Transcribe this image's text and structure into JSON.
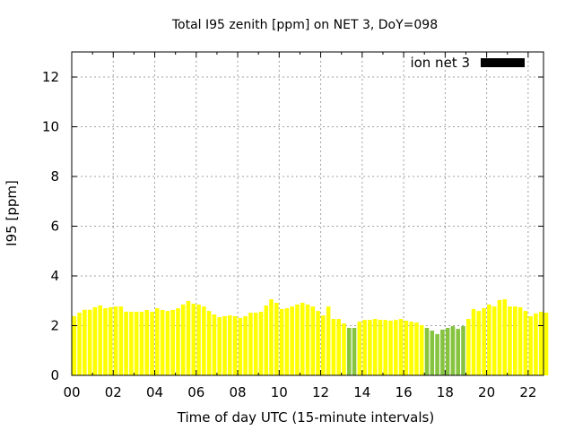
{
  "chart_data": {
    "type": "bar",
    "title": "Total I95 zenith [ppm] on NET 3, DoY=098",
    "xlabel": "Time of day UTC (15-minute intervals)",
    "ylabel": "I95 [ppm]",
    "xlim": [
      0,
      23
    ],
    "ylim": [
      0,
      13
    ],
    "grid": true,
    "legend": {
      "label": "ion net 3",
      "placement": "top-right",
      "color": "#000000"
    },
    "x_ticks": [
      "00",
      "02",
      "04",
      "06",
      "08",
      "10",
      "12",
      "14",
      "16",
      "18",
      "20",
      "22"
    ],
    "x_tick_values": [
      0,
      2,
      4,
      6,
      8,
      10,
      12,
      14,
      16,
      18,
      20,
      22
    ],
    "y_ticks": [
      "0",
      "2",
      "4",
      "6",
      "8",
      "10",
      "12"
    ],
    "y_tick_values": [
      0,
      2,
      4,
      6,
      8,
      10,
      12
    ],
    "interval_hours": 0.25,
    "colors": {
      "normal": "#ffff00",
      "flagged": "#86c440"
    },
    "values": [
      2.38,
      2.52,
      2.64,
      2.64,
      2.74,
      2.81,
      2.7,
      2.74,
      2.77,
      2.77,
      2.56,
      2.56,
      2.56,
      2.56,
      2.63,
      2.56,
      2.7,
      2.63,
      2.59,
      2.63,
      2.7,
      2.85,
      2.99,
      2.88,
      2.85,
      2.77,
      2.59,
      2.45,
      2.34,
      2.38,
      2.41,
      2.38,
      2.31,
      2.38,
      2.52,
      2.52,
      2.56,
      2.81,
      3.06,
      2.92,
      2.67,
      2.7,
      2.77,
      2.85,
      2.92,
      2.85,
      2.77,
      2.59,
      2.41,
      2.77,
      2.27,
      2.27,
      2.09,
      1.91,
      1.91,
      2.16,
      2.23,
      2.23,
      2.27,
      2.23,
      2.23,
      2.2,
      2.23,
      2.27,
      2.2,
      2.16,
      2.13,
      2.02,
      1.91,
      1.8,
      1.66,
      1.84,
      1.91,
      1.98,
      1.87,
      1.98,
      2.27,
      2.67,
      2.59,
      2.7,
      2.85,
      2.77,
      3.03,
      3.06,
      2.77,
      2.77,
      2.74,
      2.59,
      2.38,
      2.49,
      2.56,
      2.52
    ],
    "flagged_indices": [
      53,
      54,
      68,
      69,
      70,
      71,
      72,
      73,
      74,
      75
    ]
  }
}
